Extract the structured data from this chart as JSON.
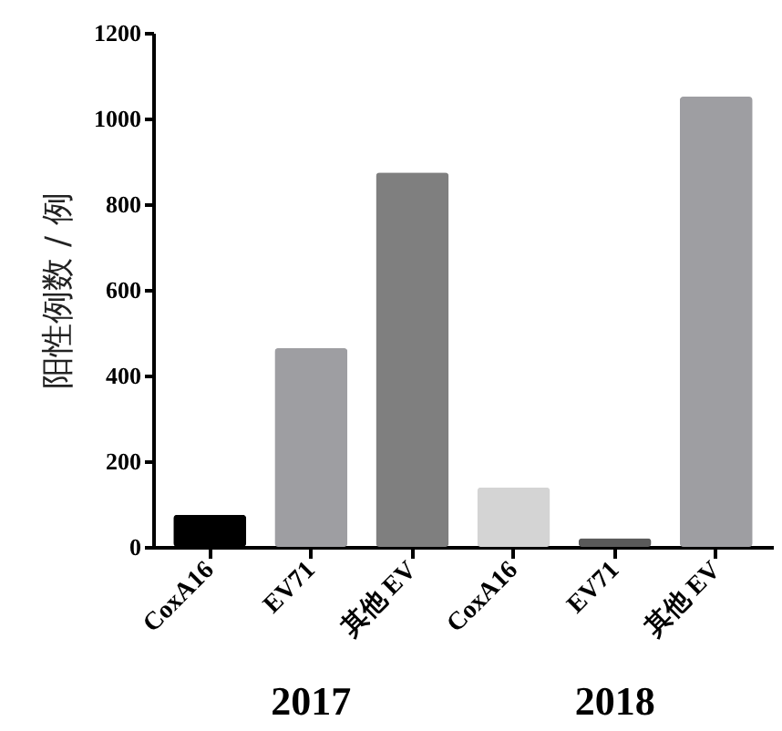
{
  "chart_data": {
    "type": "bar",
    "ylabel": "阳性例数 / 例",
    "categories": [
      "CoxA16",
      "EV71",
      "其他 EV",
      "CoxA16",
      "EV71",
      "其他 EV"
    ],
    "values": [
      75,
      464,
      874,
      139,
      20,
      1051
    ],
    "colors": [
      "#000000",
      "#9e9ea2",
      "#7f7f7f",
      "#d4d4d4",
      "#5a5a5a",
      "#9e9ea2"
    ],
    "ylim": [
      0,
      1200
    ],
    "yticks": [
      0,
      200,
      400,
      600,
      800,
      1000,
      1200
    ],
    "grid": false,
    "annotations": [
      "2017",
      "2018"
    ]
  }
}
